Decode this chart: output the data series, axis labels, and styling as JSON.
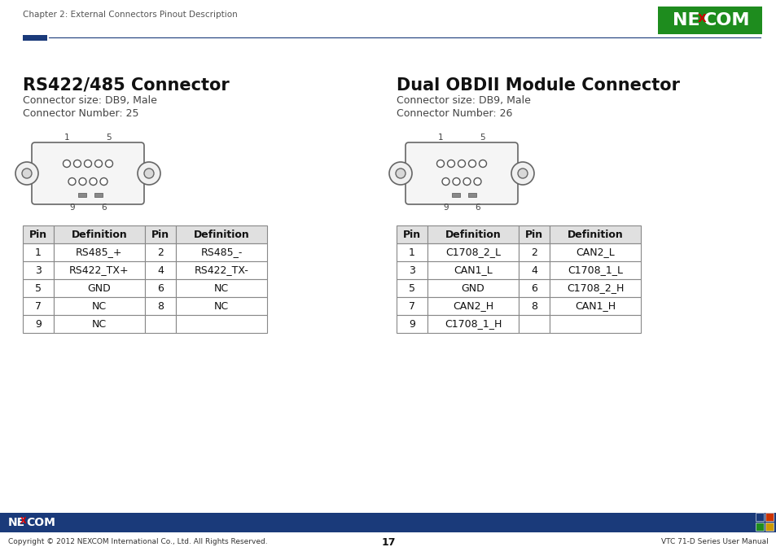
{
  "page_header_text": "Chapter 2: External Connectors Pinout Description",
  "page_number": "17",
  "footer_left": "Copyright © 2012 NEXCOM International Co., Ltd. All Rights Reserved.",
  "footer_right": "VTC 71-D Series User Manual",
  "header_bar_color": "#1a3a7a",
  "nexcom_green": "#1e8c1e",
  "left_section": {
    "title": "RS422/485 Connector",
    "subtitle1": "Connector size: DB9, Male",
    "subtitle2": "Connector Number: 25",
    "table_headers": [
      "Pin",
      "Definition",
      "Pin",
      "Definition"
    ],
    "table_rows": [
      [
        "1",
        "RS485_+",
        "2",
        "RS485_-"
      ],
      [
        "3",
        "RS422_TX+",
        "4",
        "RS422_TX-"
      ],
      [
        "5",
        "GND",
        "6",
        "NC"
      ],
      [
        "7",
        "NC",
        "8",
        "NC"
      ],
      [
        "9",
        "NC",
        "",
        ""
      ]
    ]
  },
  "right_section": {
    "title": "Dual OBDII Module Connector",
    "subtitle1": "Connector size: DB9, Male",
    "subtitle2": "Connector Number: 26",
    "table_headers": [
      "Pin",
      "Definition",
      "Pin",
      "Definition"
    ],
    "table_rows": [
      [
        "1",
        "C1708_2_L",
        "2",
        "CAN2_L"
      ],
      [
        "3",
        "CAN1_L",
        "4",
        "C1708_1_L"
      ],
      [
        "5",
        "GND",
        "6",
        "C1708_2_H"
      ],
      [
        "7",
        "CAN2_H",
        "8",
        "CAN1_H"
      ],
      [
        "9",
        "C1708_1_H",
        "",
        ""
      ]
    ]
  },
  "bg_color": "#ffffff",
  "text_color": "#000000",
  "table_border_color": "#888888",
  "divider_blue": "#1a3a7a"
}
